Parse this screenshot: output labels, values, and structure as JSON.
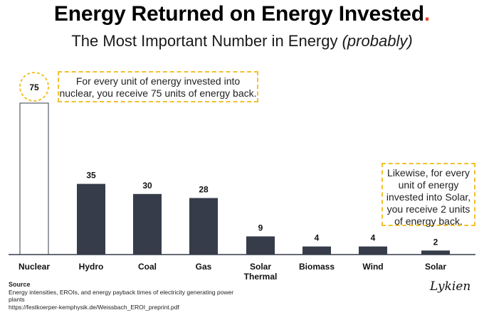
{
  "title": "Energy Returned on Energy Invested",
  "title_dot": ".",
  "subtitle_main": "The Most Important Number in Energy ",
  "subtitle_italic": "(probably)",
  "chart_data": {
    "type": "bar",
    "title": "Energy Returned on Energy Invested",
    "subtitle": "The Most Important Number in Energy (probably)",
    "categories": [
      "Nuclear",
      "Hydro",
      "Coal",
      "Gas",
      "Solar\nThermal",
      "Biomass",
      "Wind",
      "Solar"
    ],
    "values": [
      75,
      35,
      30,
      28,
      9,
      4,
      4,
      2
    ],
    "xlabel": "",
    "ylabel": "",
    "ylim": [
      0,
      75
    ],
    "grid": false,
    "highlighted_category": "Nuclear",
    "colors": {
      "bar": "#363c4a",
      "highlight_fill": "#ffffff",
      "highlight_stroke": "#363c4a",
      "dashed_accent": "#f2c12e",
      "title_dot": "#e5432a"
    }
  },
  "annotations": {
    "nuclear": "For every unit of energy invested into nuclear, you receive 75 units of energy back.",
    "solar": "Likewise, for every unit of energy invested into Solar, you receive 2 units of energy back."
  },
  "source": {
    "label": "Source",
    "line1": "Energy intensities, EROIs, and energy payback times of electricity generating power plants",
    "line2": "https://festkoerper-kemphysik.de/Weissbach_EROI_preprint.pdf"
  },
  "signature": "Lykien"
}
